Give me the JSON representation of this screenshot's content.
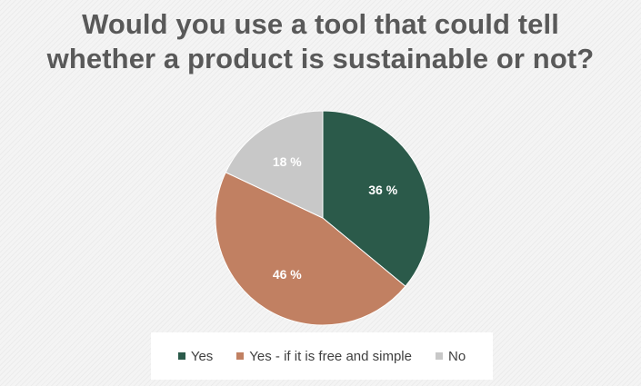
{
  "chart_data": {
    "type": "pie",
    "title_lines": [
      "Would you use a tool that could tell",
      "whether a product is sustainable or not?"
    ],
    "categories": [
      "Yes",
      "Yes - if it is free and simple",
      "No"
    ],
    "values": [
      36,
      46,
      18
    ],
    "data_labels": [
      "36 %",
      "46 %",
      "18 %"
    ],
    "colors": [
      "#2b5a4a",
      "#c18062",
      "#c8c8c8"
    ],
    "legend_position": "bottom",
    "start_angle_deg": 0,
    "direction": "clockwise"
  }
}
